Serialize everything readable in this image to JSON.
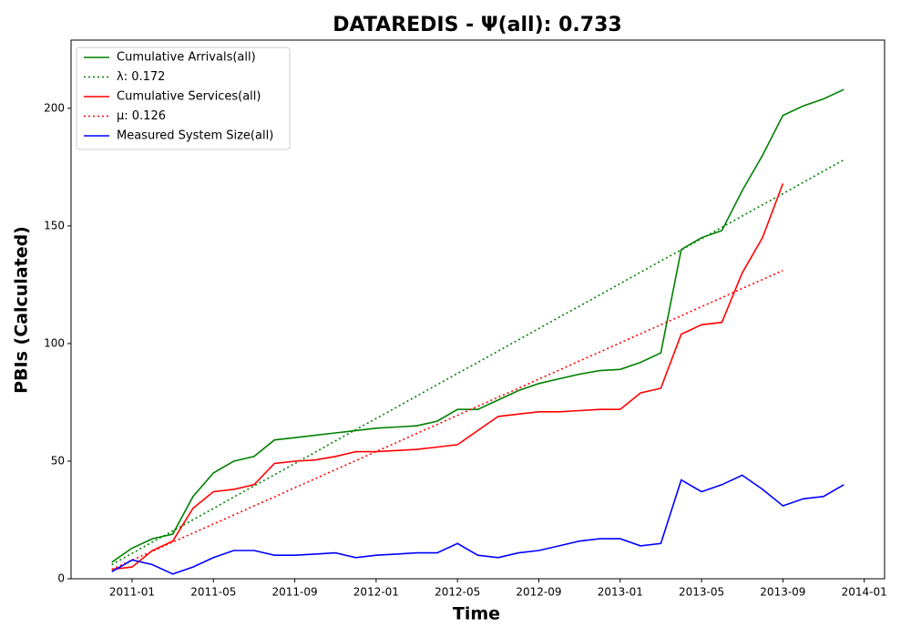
{
  "chart_data": {
    "type": "line",
    "title": "DATAREDIS -  Ψ(all): 0.733",
    "x_label": "Time",
    "y_label": "PBIs (Calculated)",
    "x": [
      "2010-12",
      "2011-01",
      "2011-02",
      "2011-03",
      "2011-04",
      "2011-05",
      "2011-06",
      "2011-07",
      "2011-08",
      "2011-09",
      "2011-10",
      "2011-11",
      "2011-12",
      "2012-01",
      "2012-02",
      "2012-03",
      "2012-04",
      "2012-05",
      "2012-06",
      "2012-07",
      "2012-08",
      "2012-09",
      "2012-10",
      "2012-11",
      "2012-12",
      "2013-01",
      "2013-02",
      "2013-03",
      "2013-04",
      "2013-05",
      "2013-06",
      "2013-07",
      "2013-08",
      "2013-09",
      "2013-10",
      "2013-11",
      "2013-12"
    ],
    "series": [
      {
        "name": "Cumulative Arrivals(all)",
        "color": "#008000",
        "style": "solid",
        "values": [
          7,
          13,
          17,
          19,
          35,
          45,
          50,
          52,
          59,
          60,
          61,
          62,
          63,
          64,
          64.5,
          65,
          67,
          72,
          72,
          76,
          80,
          83,
          85,
          87,
          88.5,
          89,
          92,
          96,
          140,
          145,
          148,
          165,
          180,
          197,
          201,
          204,
          208
        ]
      },
      {
        "name": "λ: 0.172",
        "color": "#008000",
        "style": "dotted",
        "values": [
          6,
          10.8,
          15.6,
          20.3,
          25.1,
          29.9,
          34.7,
          39.5,
          44.2,
          49,
          53.8,
          58.6,
          63.4,
          68.1,
          72.9,
          77.7,
          82.5,
          87.3,
          92,
          96.8,
          101.6,
          106.4,
          111.2,
          115.9,
          120.7,
          125.5,
          130.3,
          135.1,
          139.8,
          144.6,
          149.4,
          154.2,
          159,
          163.7,
          168.5,
          173.3,
          178.1
        ]
      },
      {
        "name": "Cumulative Services(all)",
        "color": "#ff0000",
        "style": "solid",
        "values": [
          4,
          5,
          12,
          16,
          30,
          37,
          38,
          40,
          49,
          50,
          50.5,
          52,
          54,
          54,
          54.5,
          55,
          56,
          57,
          63,
          69,
          70,
          71,
          71,
          71.5,
          72,
          72,
          79,
          81,
          104,
          108,
          109,
          130,
          145,
          168,
          null,
          null,
          null
        ]
      },
      {
        "name": "μ: 0.126",
        "color": "#ff0000",
        "style": "dotted",
        "values": [
          4,
          7.9,
          11.7,
          15.6,
          19.4,
          23.3,
          27.1,
          31,
          34.8,
          38.7,
          42.5,
          46.4,
          50.2,
          54.1,
          57.9,
          61.8,
          65.6,
          69.5,
          73.3,
          77.2,
          81,
          84.9,
          88.7,
          92.6,
          96.4,
          100.3,
          104.1,
          108,
          111.8,
          115.7,
          119.5,
          123.4,
          127.2,
          131.1,
          null,
          null,
          null
        ]
      },
      {
        "name": "Measured System Size(all)",
        "color": "#0000ff",
        "style": "solid",
        "values": [
          3,
          8,
          6,
          2,
          5,
          9,
          12,
          12,
          10,
          10,
          10.5,
          11,
          9,
          10,
          10.5,
          11,
          11,
          15,
          10,
          9,
          11,
          12,
          14,
          16,
          17,
          17,
          14,
          15,
          42,
          37,
          40,
          44,
          38,
          31,
          34,
          35,
          40
        ]
      }
    ],
    "xlim": [
      "2010-10",
      "2014-02"
    ],
    "xticks": [
      "2011-01",
      "2011-05",
      "2011-09",
      "2012-01",
      "2012-05",
      "2012-09",
      "2013-01",
      "2013-05",
      "2013-09",
      "2014-01"
    ],
    "ylim": [
      0,
      229
    ],
    "yticks": [
      0,
      50,
      100,
      150,
      200
    ],
    "grid": false,
    "legend": "upper left"
  }
}
